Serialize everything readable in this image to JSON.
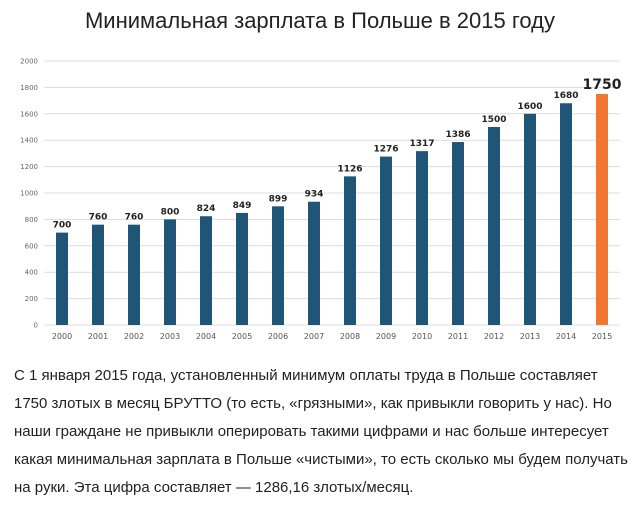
{
  "page": {
    "title": "Минимальная зарплата в Польше в 2015 году",
    "paragraph": "С 1 января 2015 года, установленный минимум оплаты труда в Польше составляет 1750 злотых в месяц БРУТТО (то есть, «грязными», как привыкли говорить у нас). Но наши граждане не привыкли оперировать такими цифрами и нас больше интересует какая минимальная зарплата в Польше «чистыми», то есть сколько мы будем получать на руки. Эта цифра составляет — 1286,16 злотых/месяц."
  },
  "colors": {
    "bar": "#1f5577",
    "highlight": "#f2762e",
    "grid": "#dcdcdc"
  },
  "chart_data": {
    "type": "bar",
    "title": "Минимальная зарплата в Польше в 2015 году",
    "xlabel": "",
    "ylabel": "",
    "categories": [
      "2000",
      "2001",
      "2002",
      "2003",
      "2004",
      "2005",
      "2006",
      "2007",
      "2008",
      "2009",
      "2010",
      "2011",
      "2012",
      "2013",
      "2014",
      "2015"
    ],
    "values": [
      700,
      760,
      760,
      800,
      824,
      849,
      899,
      934,
      1126,
      1276,
      1317,
      1386,
      1500,
      1600,
      1680,
      1750
    ],
    "highlight_category": "2015",
    "ylim": [
      0,
      2000
    ],
    "yticks": [
      0,
      200,
      400,
      600,
      800,
      1000,
      1200,
      1400,
      1600,
      1800,
      2000
    ],
    "grid": true,
    "legend": "none"
  }
}
